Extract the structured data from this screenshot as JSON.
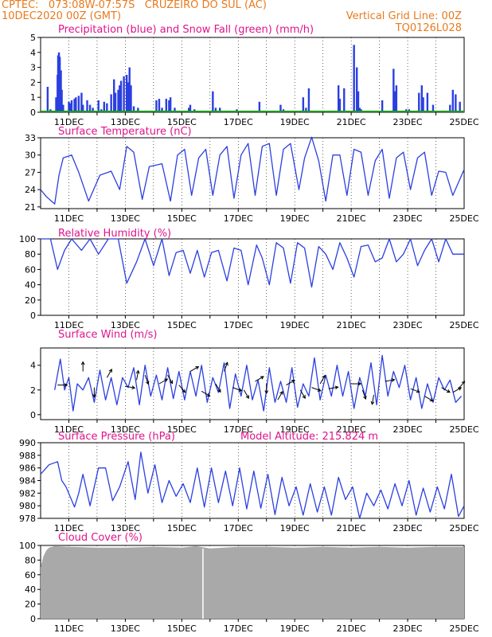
{
  "header": {
    "line1_left": "CPTEC:   073:08W-07:57S   CRUZEIRO DO SUL (AC)",
    "line2_left": "10DEC2020 00Z (GMT)",
    "line2_right": "Vertical Grid Line: 00Z",
    "line3_right": "TQ0126L028"
  },
  "colors": {
    "header": "#e87a1e",
    "title": "#e0148c",
    "series": "#2b3fe0",
    "snow": "#1a9a1a",
    "cloud": "#a9a9a9"
  },
  "x_ticks": [
    "11DEC",
    "13DEC",
    "15DEC",
    "17DEC",
    "19DEC",
    "21DEC",
    "23DEC",
    "25DEC"
  ],
  "chart_data": [
    {
      "type": "bar",
      "title": "Precipitation (blue) and Snow Fall (green) (mm/h)",
      "ylim": [
        0,
        5
      ],
      "yticks": [
        0,
        1,
        2,
        3,
        4,
        5
      ],
      "series": [
        {
          "name": "Precipitation",
          "x": [
            0.25,
            0.35,
            0.55,
            0.6,
            0.62,
            0.65,
            0.68,
            0.72,
            0.75,
            0.8,
            1.0,
            1.05,
            1.1,
            1.2,
            1.25,
            1.35,
            1.45,
            1.5,
            1.65,
            1.75,
            1.85,
            2.05,
            2.15,
            2.25,
            2.35,
            2.5,
            2.6,
            2.65,
            2.75,
            2.8,
            2.85,
            2.95,
            3.05,
            3.1,
            3.15,
            3.2,
            3.3,
            3.45,
            4.1,
            4.2,
            4.3,
            4.45,
            4.55,
            4.6,
            4.75,
            5.25,
            5.3,
            5.45,
            6.1,
            6.2,
            6.35,
            6.95,
            7.0,
            7.75,
            7.95,
            8.5,
            8.6,
            9.3,
            9.4,
            9.5,
            10.55,
            10.6,
            10.75,
            11.1,
            11.2,
            11.25,
            11.3,
            11.35,
            12.1,
            12.2,
            12.5,
            12.55,
            12.6,
            12.95,
            13.05,
            13.4,
            13.5,
            13.55,
            13.7,
            13.9,
            14.5,
            14.6,
            14.7,
            14.85
          ],
          "values": [
            1.7,
            0.2,
            1.0,
            2.5,
            3.8,
            4.0,
            3.7,
            2.8,
            1.5,
            0.5,
            0.7,
            0.6,
            0.8,
            0.9,
            1.0,
            1.1,
            1.3,
            0.5,
            0.8,
            0.5,
            0.3,
            0.8,
            0.2,
            0.7,
            0.6,
            1.2,
            2.2,
            1.3,
            1.5,
            1.8,
            2.1,
            2.4,
            2.5,
            2.0,
            3.0,
            1.8,
            0.4,
            0.3,
            0.8,
            0.9,
            0.3,
            0.9,
            0.8,
            1.0,
            0.3,
            0.3,
            0.5,
            0.2,
            1.4,
            0.3,
            0.3,
            0.2,
            0.1,
            0.7,
            0.1,
            0.5,
            0.2,
            1.0,
            0.3,
            1.6,
            1.8,
            0.9,
            1.6,
            4.5,
            3.0,
            1.4,
            0.3,
            0.2,
            0.8,
            0.1,
            2.9,
            1.4,
            1.8,
            0.2,
            0.2,
            1.3,
            1.8,
            1.0,
            1.3,
            0.5,
            0.5,
            1.5,
            1.2,
            0.7
          ]
        },
        {
          "name": "Snow Fall",
          "x": [
            0.0,
            15.0
          ],
          "values": [
            0.0,
            0.0
          ]
        }
      ]
    },
    {
      "type": "line",
      "title": "Surface Temperature (nC)",
      "ylim": [
        20.7,
        33
      ],
      "yticks": [
        21,
        24,
        27,
        30,
        33
      ],
      "series": [
        {
          "name": "",
          "x": [
            0,
            0.2,
            0.5,
            0.65,
            0.8,
            1.1,
            1.35,
            1.7,
            2.1,
            2.5,
            2.8,
            3.05,
            3.3,
            3.6,
            3.85,
            4.3,
            4.6,
            4.85,
            5.1,
            5.35,
            5.6,
            5.85,
            6.1,
            6.35,
            6.6,
            6.85,
            7.1,
            7.35,
            7.6,
            7.85,
            8.1,
            8.35,
            8.6,
            8.85,
            9.15,
            9.35,
            9.6,
            9.85,
            10.1,
            10.35,
            10.6,
            10.85,
            11.1,
            11.35,
            11.6,
            11.85,
            12.1,
            12.35,
            12.6,
            12.85,
            13.1,
            13.35,
            13.6,
            13.85,
            14.1,
            14.35,
            14.6,
            15.0
          ],
          "values": [
            24,
            22.8,
            21.5,
            26.5,
            29.5,
            30,
            27,
            22,
            26.5,
            27.2,
            24,
            31.5,
            30.5,
            22.3,
            28,
            28.5,
            22,
            30,
            31,
            23,
            29.5,
            31,
            23,
            30,
            31.5,
            22.5,
            30,
            32,
            23,
            31.5,
            32,
            23,
            31,
            32,
            24,
            29.5,
            33.1,
            29,
            22,
            30,
            30,
            23,
            31,
            30.5,
            23,
            29,
            31,
            22.5,
            29.5,
            30.5,
            24,
            29.5,
            30.5,
            23,
            27.2,
            27,
            23,
            27.5
          ]
        }
      ]
    },
    {
      "type": "line",
      "title": "Relative Humidity (%)",
      "ylim": [
        0,
        100
      ],
      "yticks": [
        0,
        20,
        40,
        60,
        80,
        100
      ],
      "series": [
        {
          "name": "",
          "x": [
            0,
            0.35,
            0.6,
            0.85,
            1.1,
            1.45,
            1.75,
            2.05,
            2.4,
            2.75,
            3.05,
            3.4,
            3.7,
            4.0,
            4.3,
            4.55,
            4.8,
            5.05,
            5.3,
            5.55,
            5.8,
            6.05,
            6.3,
            6.6,
            6.85,
            7.1,
            7.35,
            7.65,
            7.85,
            8.1,
            8.35,
            8.6,
            8.85,
            9.1,
            9.35,
            9.6,
            9.85,
            10.1,
            10.35,
            10.6,
            10.85,
            11.1,
            11.35,
            11.6,
            11.85,
            12.1,
            12.35,
            12.6,
            12.85,
            13.1,
            13.35,
            13.6,
            13.85,
            14.1,
            14.35,
            14.6,
            15.0
          ],
          "values": [
            100,
            100,
            60,
            85,
            100,
            85,
            100,
            80,
            100,
            100,
            42,
            70,
            100,
            65,
            100,
            52,
            82,
            85,
            55,
            85,
            50,
            82,
            85,
            45,
            88,
            85,
            40,
            92,
            75,
            40,
            95,
            88,
            42,
            95,
            88,
            37,
            90,
            80,
            60,
            95,
            75,
            50,
            90,
            92,
            70,
            75,
            100,
            70,
            80,
            100,
            65,
            85,
            100,
            70,
            100,
            80,
            80
          ]
        }
      ]
    },
    {
      "type": "line",
      "title": "Surface Wind (m/s)",
      "ylim": [
        -0.4,
        5.4
      ],
      "yticks": [
        0,
        2,
        4
      ],
      "series": [
        {
          "name": "",
          "x": [
            0.5,
            0.7,
            0.85,
            1.0,
            1.15,
            1.3,
            1.5,
            1.7,
            1.9,
            2.1,
            2.3,
            2.5,
            2.7,
            2.9,
            3.1,
            3.3,
            3.5,
            3.7,
            3.9,
            4.1,
            4.3,
            4.5,
            4.7,
            4.9,
            5.1,
            5.3,
            5.5,
            5.7,
            5.9,
            6.1,
            6.3,
            6.5,
            6.7,
            6.9,
            7.1,
            7.3,
            7.5,
            7.7,
            7.9,
            8.1,
            8.3,
            8.5,
            8.7,
            8.9,
            9.1,
            9.3,
            9.5,
            9.7,
            9.9,
            10.1,
            10.3,
            10.5,
            10.7,
            10.9,
            11.1,
            11.3,
            11.5,
            11.7,
            11.9,
            12.1,
            12.3,
            12.5,
            12.7,
            12.9,
            13.1,
            13.3,
            13.5,
            13.7,
            13.9,
            14.1,
            14.3,
            14.5,
            14.7,
            14.9
          ],
          "values": [
            2.0,
            4.5,
            2.0,
            3.0,
            0.3,
            2.5,
            2.0,
            3.0,
            1.0,
            3.6,
            1.2,
            3.0,
            0.8,
            3.0,
            2.2,
            3.8,
            0.8,
            4.0,
            1.5,
            3.2,
            1.2,
            3.8,
            1.3,
            3.5,
            1.2,
            3.5,
            1.5,
            4.0,
            1.0,
            3.0,
            1.8,
            4.2,
            0.5,
            3.3,
            1.5,
            4.0,
            1.2,
            2.8,
            0.3,
            3.8,
            1.0,
            2.7,
            1.0,
            3.8,
            0.6,
            2.5,
            1.5,
            4.6,
            1.2,
            3.2,
            1.5,
            4.0,
            1.5,
            3.5,
            0.5,
            3.0,
            1.5,
            4.2,
            0.8,
            4.8,
            1.5,
            3.5,
            2.2,
            4.0,
            1.2,
            3.0,
            0.5,
            2.5,
            1.0,
            3.0,
            2.0,
            2.8,
            1.0,
            1.5
          ]
        }
      ],
      "arrows": [
        {
          "x": 0.6,
          "y": 2.4,
          "ang": 0
        },
        {
          "x": 1.5,
          "y": 3.5,
          "ang": 90
        },
        {
          "x": 1.9,
          "y": 2.2,
          "ang": -90
        },
        {
          "x": 2.35,
          "y": 3.0,
          "ang": 60
        },
        {
          "x": 3.0,
          "y": 2.3,
          "ang": -10
        },
        {
          "x": 3.4,
          "y": 2.8,
          "ang": 80
        },
        {
          "x": 3.7,
          "y": 3.2,
          "ang": -70
        },
        {
          "x": 4.2,
          "y": 2.5,
          "ang": 30
        },
        {
          "x": 4.5,
          "y": 3.2,
          "ang": -60
        },
        {
          "x": 4.9,
          "y": 2.4,
          "ang": -50
        },
        {
          "x": 5.3,
          "y": 3.5,
          "ang": 30
        },
        {
          "x": 5.7,
          "y": 1.9,
          "ang": -30
        },
        {
          "x": 6.2,
          "y": 2.5,
          "ang": -60
        },
        {
          "x": 6.5,
          "y": 3.5,
          "ang": 70
        },
        {
          "x": 6.8,
          "y": 2.2,
          "ang": -20
        },
        {
          "x": 7.2,
          "y": 2.0,
          "ang": -60
        },
        {
          "x": 7.6,
          "y": 2.7,
          "ang": 30
        },
        {
          "x": 8.0,
          "y": 2.5,
          "ang": -90
        },
        {
          "x": 8.4,
          "y": 1.2,
          "ang": 60
        },
        {
          "x": 8.7,
          "y": 2.4,
          "ang": 30
        },
        {
          "x": 9.2,
          "y": 2.0,
          "ang": -60
        },
        {
          "x": 9.6,
          "y": 2.2,
          "ang": -20
        },
        {
          "x": 9.9,
          "y": 2.5,
          "ang": 60
        },
        {
          "x": 10.2,
          "y": 2.1,
          "ang": 10
        },
        {
          "x": 11.0,
          "y": 2.5,
          "ang": 0
        },
        {
          "x": 11.4,
          "y": 2.0,
          "ang": -70
        },
        {
          "x": 11.8,
          "y": 1.6,
          "ang": -100
        },
        {
          "x": 12.2,
          "y": 2.7,
          "ang": 10
        },
        {
          "x": 13.1,
          "y": 2.1,
          "ang": -20
        },
        {
          "x": 13.6,
          "y": 1.5,
          "ang": -30
        },
        {
          "x": 14.2,
          "y": 2.2,
          "ang": -30
        },
        {
          "x": 14.6,
          "y": 1.8,
          "ang": 30
        },
        {
          "x": 14.8,
          "y": 2.1,
          "ang": 50
        }
      ]
    },
    {
      "type": "line",
      "title": "Surface Pressure (hPa)",
      "annotation": "Model Altitude: 215.824 m",
      "ylim": [
        978,
        990
      ],
      "yticks": [
        978,
        980,
        982,
        984,
        986,
        988,
        990
      ],
      "series": [
        {
          "name": "",
          "x": [
            0,
            0.3,
            0.6,
            0.75,
            0.9,
            1.2,
            1.35,
            1.5,
            1.75,
            2.05,
            2.3,
            2.55,
            2.8,
            3.1,
            3.35,
            3.55,
            3.8,
            4.05,
            4.3,
            4.55,
            4.8,
            5.05,
            5.3,
            5.55,
            5.8,
            6.05,
            6.3,
            6.55,
            6.8,
            7.05,
            7.3,
            7.55,
            7.8,
            8.05,
            8.3,
            8.55,
            8.8,
            9.05,
            9.3,
            9.55,
            9.8,
            10.05,
            10.3,
            10.55,
            10.8,
            11.05,
            11.3,
            11.55,
            11.8,
            12.05,
            12.3,
            12.55,
            12.8,
            13.05,
            13.3,
            13.55,
            13.8,
            14.05,
            14.3,
            14.55,
            14.8,
            15.0
          ],
          "values": [
            985,
            986.5,
            987,
            984,
            983,
            979.8,
            982,
            985,
            980,
            986,
            986,
            980.8,
            983,
            987,
            981,
            988.5,
            982,
            986.5,
            980.5,
            984,
            981.5,
            983.5,
            980.5,
            986,
            979.8,
            986,
            980.5,
            985.5,
            980,
            986,
            979.5,
            985.5,
            979.6,
            985,
            978.6,
            984.5,
            980,
            983,
            978.5,
            983.5,
            979,
            983,
            978.5,
            984.5,
            981,
            983,
            978,
            982,
            980,
            982.5,
            979.5,
            983.5,
            980,
            984,
            978.5,
            982.8,
            979,
            983,
            979.5,
            985,
            978.3,
            980
          ]
        }
      ]
    },
    {
      "type": "area",
      "title": "Cloud Cover (%)",
      "ylim": [
        0,
        100
      ],
      "yticks": [
        0,
        20,
        40,
        60,
        80,
        100
      ],
      "series": [
        {
          "name": "",
          "x": [
            0,
            0.1,
            0.2,
            0.3,
            0.5,
            1.0,
            2.0,
            3.0,
            4.0,
            5.0,
            5.5,
            6.0,
            7.0,
            8.0,
            9.0,
            10.0,
            11.0,
            12.0,
            13.0,
            14.0,
            15.0
          ],
          "values": [
            70,
            85,
            93,
            97,
            99,
            98,
            97,
            97,
            98,
            97,
            99,
            96,
            98,
            98,
            97,
            98,
            97,
            98,
            97,
            98,
            98
          ]
        }
      ]
    }
  ]
}
